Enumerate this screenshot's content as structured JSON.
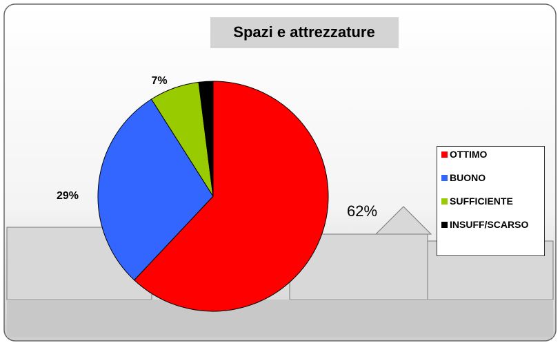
{
  "chart_data": {
    "type": "pie",
    "title": "Spazi e attrezzature",
    "categories": [
      "OTTIMO",
      "BUONO",
      "SUFFICIENTE",
      "INSUFF/SCARSO"
    ],
    "values": [
      62,
      29,
      7,
      2
    ],
    "value_labels": [
      "62%",
      "29%",
      "7%",
      null
    ],
    "colors": [
      "#ff0000",
      "#3366ff",
      "#99cc00",
      "#000000"
    ],
    "legend": "right"
  }
}
